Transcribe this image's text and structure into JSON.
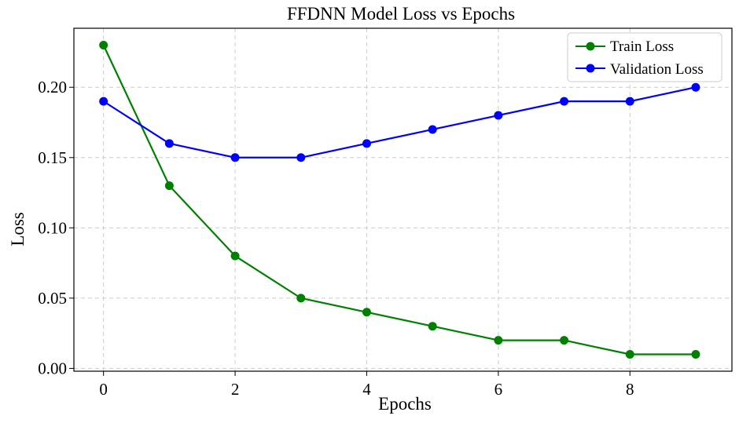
{
  "chart_data": {
    "type": "line",
    "title": "FFDNN Model Loss vs Epochs",
    "xlabel": "Epochs",
    "ylabel": "Loss",
    "x": [
      0,
      1,
      2,
      3,
      4,
      5,
      6,
      7,
      8,
      9
    ],
    "xlim": [
      -0.45,
      9.55
    ],
    "ylim": [
      -0.002,
      0.242
    ],
    "xticks": [
      0,
      2,
      4,
      6,
      8
    ],
    "yticks": [
      0.0,
      0.05,
      0.1,
      0.15,
      0.2
    ],
    "ytick_labels": [
      "0.00",
      "0.05",
      "0.10",
      "0.15",
      "0.20"
    ],
    "grid": true,
    "legend_position": "top-right",
    "series": [
      {
        "name": "Train Loss",
        "color": "#008000",
        "marker": "circle",
        "values": [
          0.23,
          0.13,
          0.08,
          0.05,
          0.04,
          0.03,
          0.02,
          0.02,
          0.01,
          0.01
        ]
      },
      {
        "name": "Validation Loss",
        "color": "#0000ff",
        "marker": "circle",
        "values": [
          0.19,
          0.16,
          0.15,
          0.15,
          0.16,
          0.17,
          0.18,
          0.19,
          0.19,
          0.2
        ]
      }
    ]
  }
}
